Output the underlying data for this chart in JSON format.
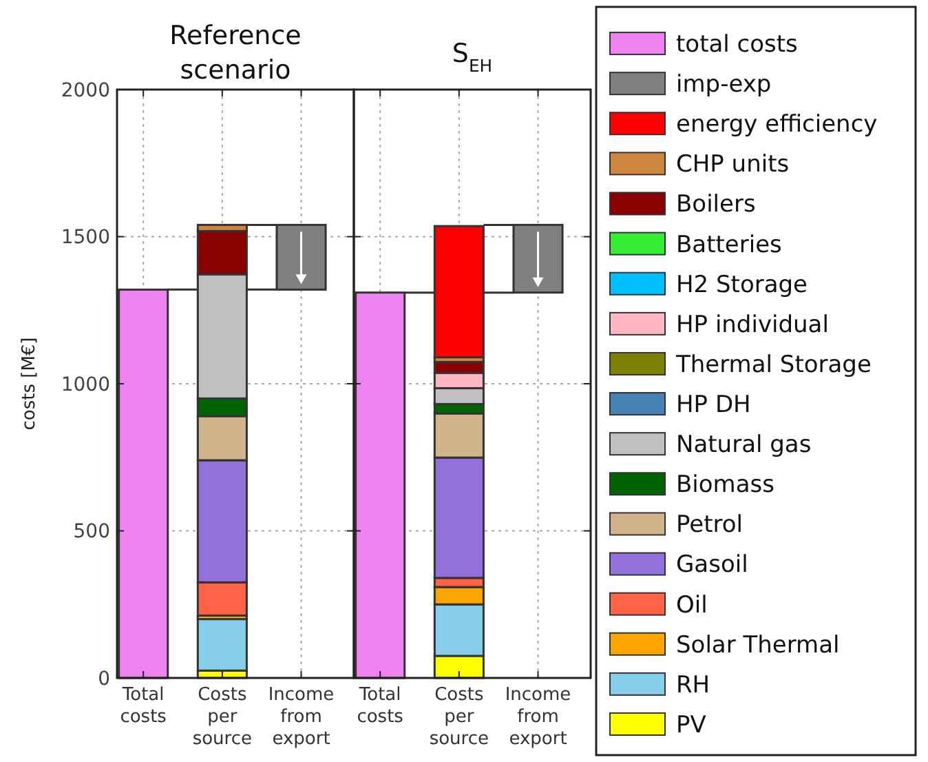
{
  "chart_data": [
    {
      "type": "bar",
      "stacked": true,
      "title": "Reference scenario",
      "ylabel": "costs [M€]",
      "categories": [
        "Total costs",
        "Costs per source",
        "Income from export"
      ],
      "ylim": [
        0,
        2000
      ],
      "yticks": [
        0,
        500,
        1000,
        1500,
        2000
      ],
      "grid": true,
      "series": [
        {
          "color": "#ffff00",
          "values": [
            null,
            25,
            null
          ]
        },
        {
          "color": "#87ceeb",
          "values": [
            null,
            175,
            null
          ]
        },
        {
          "color": "#ffa500",
          "values": [
            null,
            12,
            null
          ]
        },
        {
          "color": "#ff6347",
          "values": [
            null,
            113,
            null
          ]
        },
        {
          "color": "#9370db",
          "values": [
            null,
            415,
            null
          ]
        },
        {
          "color": "#d2b48c",
          "values": [
            null,
            150,
            null
          ]
        },
        {
          "color": "#006400",
          "values": [
            null,
            60,
            null
          ]
        },
        {
          "color": "#c0c0c0",
          "values": [
            null,
            422,
            null
          ]
        },
        {
          "color": "#8b0000",
          "values": [
            null,
            147,
            null
          ]
        },
        {
          "color": "#cd853f",
          "values": [
            null,
            21,
            null
          ]
        },
        {
          "color": "#808080",
          "values": [
            null,
            null,
            220
          ],
          "base": [
            null,
            null,
            1320
          ]
        },
        {
          "color": "#ee82ee",
          "values": [
            1320,
            null,
            null
          ]
        }
      ]
    },
    {
      "type": "bar",
      "stacked": true,
      "title": "S$_{EH}$",
      "categories": [
        "Total costs",
        "Costs per source",
        "Income from export"
      ],
      "ylim": [
        0,
        2000
      ],
      "yticks": [
        0,
        500,
        1000,
        1500,
        2000
      ],
      "tick_labels": "x",
      "grid": true,
      "legend": "right",
      "series": [
        {
          "name": "PV",
          "color": "#ffff00",
          "values": [
            null,
            75,
            null
          ]
        },
        {
          "name": "RH",
          "color": "#87ceeb",
          "values": [
            null,
            175,
            null
          ]
        },
        {
          "name": "Solar Thermal",
          "color": "#ffa500",
          "values": [
            null,
            59,
            null
          ]
        },
        {
          "name": "Oil",
          "color": "#ff6347",
          "values": [
            null,
            31,
            null
          ]
        },
        {
          "name": "Gasoil",
          "color": "#9370db",
          "values": [
            null,
            409,
            null
          ]
        },
        {
          "name": "Petrol",
          "color": "#d2b48c",
          "values": [
            null,
            150,
            null
          ]
        },
        {
          "name": "Biomass",
          "color": "#006400",
          "values": [
            null,
            32,
            null
          ]
        },
        {
          "name": "Natural gas",
          "color": "#c0c0c0",
          "values": [
            null,
            54,
            null
          ]
        },
        {
          "name": "HP DH",
          "color": "#4682b4",
          "values": [
            null,
            null,
            null
          ]
        },
        {
          "name": "Thermal Storage",
          "color": "#808000",
          "values": [
            null,
            null,
            null
          ]
        },
        {
          "name": "HP individual",
          "color": "#ffb6c1",
          "values": [
            null,
            52,
            null
          ]
        },
        {
          "name": "H2 Storage",
          "color": "#00bfff",
          "values": [
            null,
            null,
            null
          ]
        },
        {
          "name": "Batteries",
          "color": "#33ee33",
          "values": [
            null,
            null,
            null
          ]
        },
        {
          "name": "Boilers",
          "color": "#8b0000",
          "values": [
            null,
            37,
            null
          ]
        },
        {
          "name": "CHP units",
          "color": "#cd853f",
          "values": [
            null,
            16,
            null
          ]
        },
        {
          "name": "energy efficiency",
          "color": "#ff0000",
          "values": [
            null,
            446,
            null
          ]
        },
        {
          "name": "imp-exp",
          "color": "#808080",
          "values": [
            null,
            null,
            230
          ],
          "base": [
            null,
            null,
            1310
          ]
        },
        {
          "name": "total costs",
          "color": "#ee82ee",
          "values": [
            1310,
            null,
            null
          ]
        }
      ]
    }
  ]
}
